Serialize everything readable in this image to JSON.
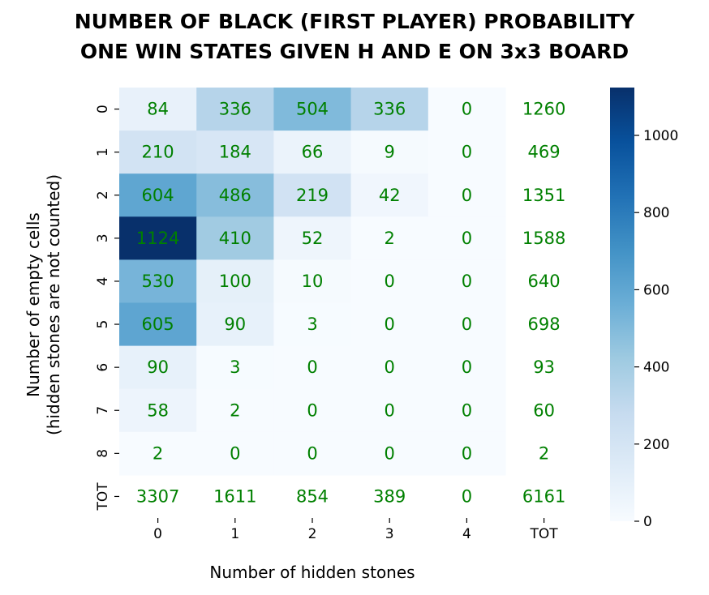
{
  "chart_data": {
    "type": "heatmap",
    "title_lines": [
      "NUMBER OF BLACK (FIRST PLAYER) PROBABILITY",
      "ONE WIN STATES GIVEN H AND E ON 3x3 BOARD"
    ],
    "xlabel": "Number of hidden stones",
    "ylabel_lines": [
      "Number of empty cells",
      "(hidden stones are not counted)"
    ],
    "x_categories": [
      "0",
      "1",
      "2",
      "3",
      "4",
      "TOT"
    ],
    "y_categories": [
      "0",
      "1",
      "2",
      "3",
      "4",
      "5",
      "6",
      "7",
      "8",
      "TOT"
    ],
    "values": [
      [
        84,
        336,
        504,
        336,
        0,
        1260
      ],
      [
        210,
        184,
        66,
        9,
        0,
        469
      ],
      [
        604,
        486,
        219,
        42,
        0,
        1351
      ],
      [
        1124,
        410,
        52,
        2,
        0,
        1588
      ],
      [
        530,
        100,
        10,
        0,
        0,
        640
      ],
      [
        605,
        90,
        3,
        0,
        0,
        698
      ],
      [
        90,
        3,
        0,
        0,
        0,
        93
      ],
      [
        58,
        2,
        0,
        0,
        0,
        60
      ],
      [
        2,
        0,
        0,
        0,
        0,
        2
      ],
      [
        3307,
        1611,
        854,
        389,
        0,
        6161
      ]
    ],
    "colored_region": "rows 0-8, columns 0-4",
    "colormap": "Blues",
    "color_range": [
      0,
      1124
    ],
    "colorbar_ticks": [
      0,
      200,
      400,
      600,
      800,
      1000
    ],
    "annotation_color": "#008000",
    "grid": false,
    "legend": "colorbar-right"
  }
}
